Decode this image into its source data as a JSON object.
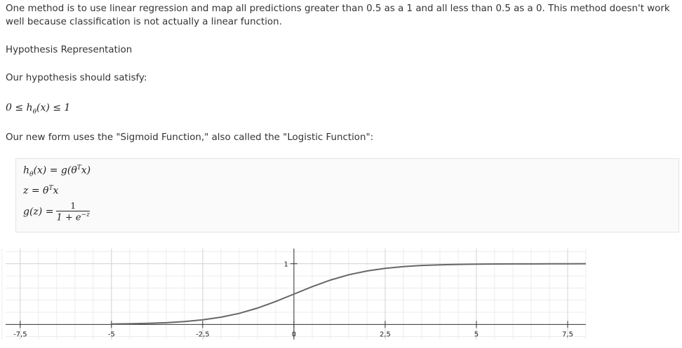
{
  "paragraphs": [
    "One method is to use linear regression and map all predictions greater than 0.5 as a 1 and all less than 0.5 as a 0. This method doesn't work well because classification is not actually a linear function.",
    "Hypothesis Representation",
    "Our hypothesis should satisfy:",
    "Our new form uses the \"Sigmoid Function,\" also called the \"Logistic Function\":"
  ],
  "formulas": {
    "inequality": [
      "0 ≤ h",
      "θ",
      "(x) ≤ 1"
    ],
    "hypothesis": [
      "h",
      "θ",
      "(x) = g(θ",
      "T",
      "x)"
    ],
    "z": [
      "z = θ",
      "T",
      "x"
    ],
    "g": {
      "lhs": "g(z) =",
      "numerator": "1",
      "denominator": [
        "1 + e",
        "−z"
      ]
    }
  },
  "chart_data": {
    "type": "line",
    "x": [
      -5,
      -4.5,
      -4,
      -3.5,
      -3,
      -2.5,
      -2,
      -1.5,
      -1,
      -0.5,
      0,
      0.5,
      1,
      1.5,
      2,
      2.5,
      3,
      3.5,
      4,
      4.5,
      5,
      5.5,
      6,
      6.5,
      7,
      7.5,
      8
    ],
    "values": [
      0.007,
      0.011,
      0.018,
      0.029,
      0.047,
      0.076,
      0.119,
      0.182,
      0.269,
      0.378,
      0.5,
      0.622,
      0.731,
      0.818,
      0.881,
      0.924,
      0.953,
      0.971,
      0.982,
      0.989,
      0.993,
      0.996,
      0.998,
      0.998,
      0.999,
      0.999,
      1.0
    ],
    "color": "#666666",
    "xlim": [
      -7.9,
      8
    ],
    "ylim": [
      -0.25,
      1.25
    ],
    "xticks": [
      {
        "value": -7.5,
        "label": "-7,5"
      },
      -5,
      {
        "value": -2.5,
        "label": "-2,5"
      },
      0,
      {
        "value": 2.5,
        "label": "2,5"
      },
      5,
      {
        "value": 7.5,
        "label": "7,5"
      }
    ],
    "yticks": [
      1
    ],
    "grid": true
  }
}
